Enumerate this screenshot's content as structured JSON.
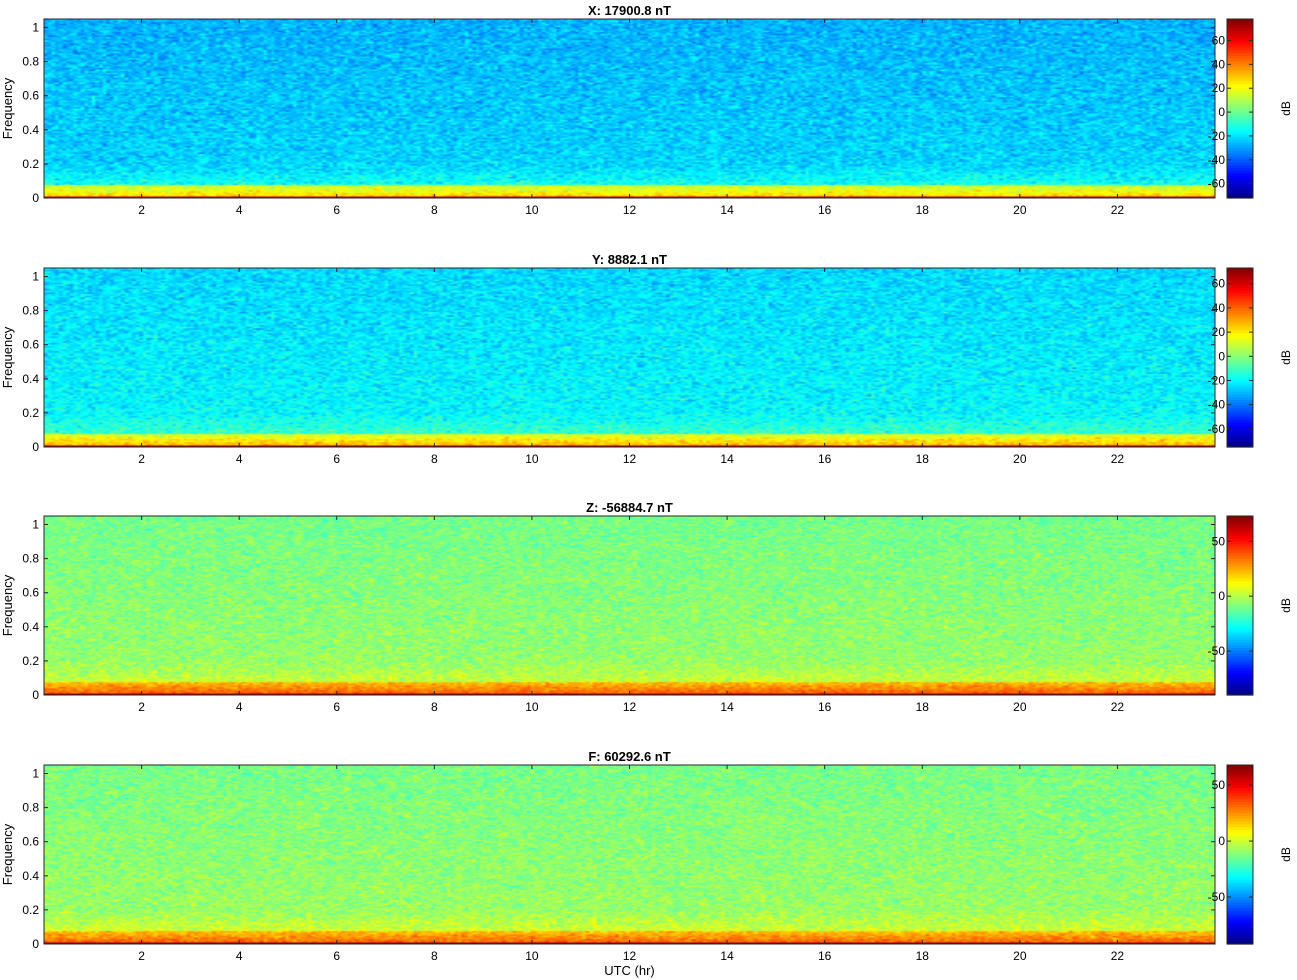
{
  "figure": {
    "xlabel": "UTC (hr)"
  },
  "chart_data": [
    {
      "type": "heatmap",
      "title": "X: 17900.8 nT",
      "ylabel": "Frequency",
      "xlim": [
        0,
        24
      ],
      "ylim": [
        0,
        1.05
      ],
      "x_ticks": [
        2,
        4,
        6,
        8,
        10,
        12,
        14,
        16,
        18,
        20,
        22
      ],
      "y_ticks": [
        0,
        0.2,
        0.4,
        0.6,
        0.8,
        1
      ],
      "colorbar": {
        "label": "dB",
        "range": [
          -72,
          78
        ],
        "ticks": [
          -60,
          -40,
          -20,
          0,
          20,
          40,
          60
        ]
      },
      "colormap": "jet",
      "level_profile": {
        "background_db": -22,
        "low_frequency_db": 30,
        "zero_line_db": 70
      }
    },
    {
      "type": "heatmap",
      "title": "Y: 8882.1 nT",
      "ylabel": "Frequency",
      "xlim": [
        0,
        24
      ],
      "ylim": [
        0,
        1.05
      ],
      "x_ticks": [
        2,
        4,
        6,
        8,
        10,
        12,
        14,
        16,
        18,
        20,
        22
      ],
      "y_ticks": [
        0,
        0.2,
        0.4,
        0.6,
        0.8,
        1
      ],
      "colorbar": {
        "label": "dB",
        "range": [
          -75,
          73
        ],
        "ticks": [
          -60,
          -40,
          -20,
          0,
          20,
          40,
          60
        ]
      },
      "colormap": "jet",
      "level_profile": {
        "background_db": -20,
        "low_frequency_db": 30,
        "zero_line_db": 68
      }
    },
    {
      "type": "heatmap",
      "title": "Z: -56884.7 nT",
      "ylabel": "Frequency",
      "xlim": [
        0,
        24
      ],
      "ylim": [
        0,
        1.05
      ],
      "x_ticks": [
        2,
        4,
        6,
        8,
        10,
        12,
        14,
        16,
        18,
        20,
        22
      ],
      "y_ticks": [
        0,
        0.2,
        0.4,
        0.6,
        0.8,
        1
      ],
      "colorbar": {
        "label": "dB",
        "range": [
          -90,
          73
        ],
        "ticks": [
          -50,
          0,
          50
        ]
      },
      "colormap": "jet",
      "level_profile": {
        "background_db": -5,
        "low_frequency_db": 40,
        "zero_line_db": 68
      }
    },
    {
      "type": "heatmap",
      "title": "F: 60292.6 nT",
      "ylabel": "Frequency",
      "xlim": [
        0,
        24
      ],
      "ylim": [
        0,
        1.05
      ],
      "x_ticks": [
        2,
        4,
        6,
        8,
        10,
        12,
        14,
        16,
        18,
        20,
        22
      ],
      "y_ticks": [
        0,
        0.2,
        0.4,
        0.6,
        0.8,
        1
      ],
      "colorbar": {
        "label": "dB",
        "range": [
          -92,
          68
        ],
        "ticks": [
          -50,
          0,
          50
        ]
      },
      "colormap": "jet",
      "level_profile": {
        "background_db": -8,
        "low_frequency_db": 35,
        "zero_line_db": 64
      }
    }
  ]
}
